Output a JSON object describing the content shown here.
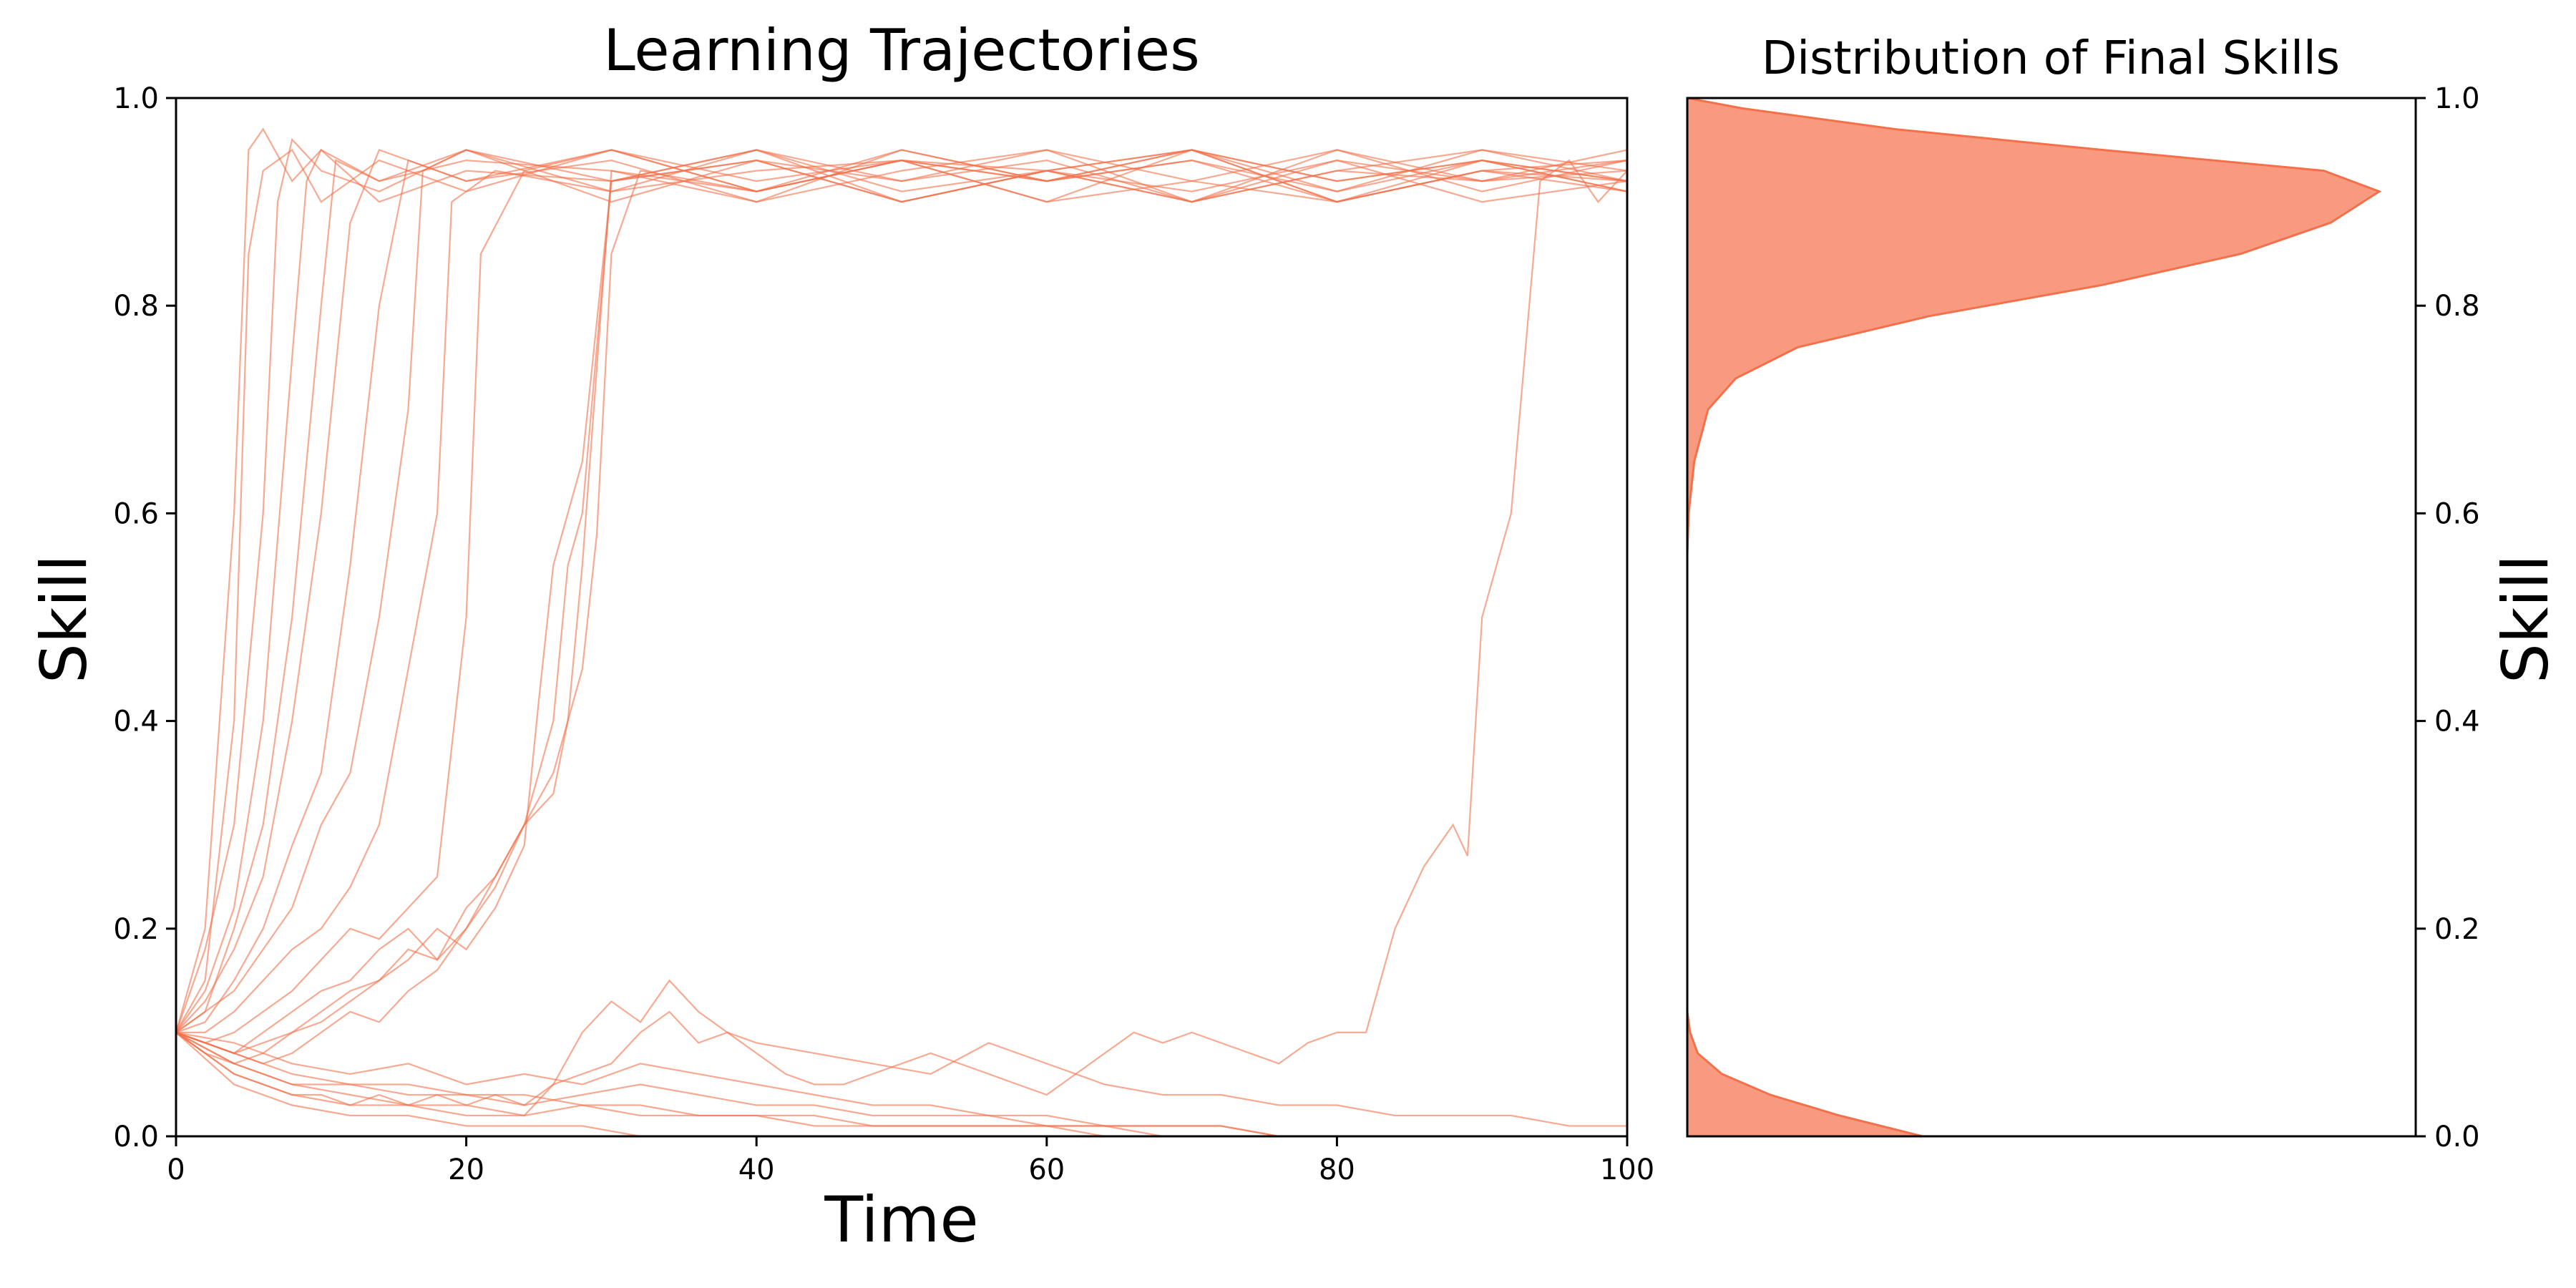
{
  "chart_data": [
    {
      "type": "line",
      "title": "Learning Trajectories",
      "xlabel": "Time",
      "ylabel": "Skill",
      "xlim": [
        0,
        100
      ],
      "ylim": [
        0,
        1
      ],
      "xticks": [
        0,
        20,
        40,
        60,
        80,
        100
      ],
      "yticks": [
        0,
        0.2,
        0.4,
        0.6,
        0.8,
        1.0
      ],
      "xtick_labels": [
        "0",
        "20",
        "40",
        "60",
        "80",
        "100"
      ],
      "ytick_labels": [
        "0.0",
        "0.2",
        "0.4",
        "0.6",
        "0.8",
        "1.0"
      ],
      "color": "#F4704A",
      "grid": false,
      "series": [
        {
          "x": [
            0,
            2,
            4,
            5,
            6,
            8,
            10,
            14,
            20,
            30,
            40,
            50,
            60,
            70,
            80,
            90,
            100
          ],
          "y": [
            0.1,
            0.2,
            0.6,
            0.95,
            0.97,
            0.92,
            0.95,
            0.9,
            0.93,
            0.92,
            0.95,
            0.9,
            0.93,
            0.91,
            0.94,
            0.9,
            0.92
          ]
        },
        {
          "x": [
            0,
            2,
            4,
            5,
            6,
            8,
            10,
            14,
            20,
            30,
            40,
            50,
            60,
            70,
            80,
            90,
            100
          ],
          "y": [
            0.1,
            0.15,
            0.4,
            0.85,
            0.93,
            0.95,
            0.9,
            0.94,
            0.91,
            0.95,
            0.92,
            0.94,
            0.9,
            0.95,
            0.92,
            0.94,
            0.91
          ]
        },
        {
          "x": [
            0,
            2,
            4,
            6,
            7,
            8,
            10,
            14,
            20,
            30,
            40,
            50,
            60,
            70,
            80,
            90,
            100
          ],
          "y": [
            0.1,
            0.18,
            0.3,
            0.6,
            0.9,
            0.96,
            0.93,
            0.91,
            0.95,
            0.9,
            0.94,
            0.92,
            0.95,
            0.9,
            0.93,
            0.92,
            0.94
          ]
        },
        {
          "x": [
            0,
            2,
            4,
            6,
            8,
            9,
            10,
            14,
            20,
            30,
            40,
            50,
            60,
            70,
            80,
            90,
            100
          ],
          "y": [
            0.1,
            0.14,
            0.22,
            0.4,
            0.75,
            0.92,
            0.95,
            0.92,
            0.94,
            0.93,
            0.9,
            0.95,
            0.92,
            0.94,
            0.91,
            0.95,
            0.93
          ]
        },
        {
          "x": [
            0,
            2,
            4,
            6,
            8,
            10,
            11,
            14,
            20,
            30,
            40,
            50,
            60,
            70,
            80,
            90,
            100
          ],
          "y": [
            0.1,
            0.12,
            0.2,
            0.3,
            0.5,
            0.8,
            0.94,
            0.92,
            0.95,
            0.91,
            0.93,
            0.94,
            0.9,
            0.92,
            0.95,
            0.91,
            0.94
          ]
        },
        {
          "x": [
            0,
            2,
            4,
            6,
            8,
            10,
            12,
            14,
            20,
            30,
            40,
            50,
            60,
            70,
            80,
            90,
            100
          ],
          "y": [
            0.1,
            0.13,
            0.18,
            0.25,
            0.4,
            0.6,
            0.88,
            0.95,
            0.92,
            0.94,
            0.9,
            0.93,
            0.95,
            0.92,
            0.9,
            0.94,
            0.92
          ]
        },
        {
          "x": [
            0,
            2,
            4,
            6,
            8,
            10,
            12,
            14,
            16,
            20,
            30,
            40,
            50,
            60,
            70,
            80,
            90,
            100
          ],
          "y": [
            0.1,
            0.11,
            0.15,
            0.2,
            0.28,
            0.35,
            0.55,
            0.8,
            0.94,
            0.92,
            0.95,
            0.91,
            0.94,
            0.93,
            0.9,
            0.95,
            0.92,
            0.93
          ]
        },
        {
          "x": [
            0,
            2,
            4,
            6,
            8,
            10,
            12,
            14,
            16,
            17,
            20,
            30,
            40,
            50,
            60,
            70,
            80,
            90,
            100
          ],
          "y": [
            0.1,
            0.12,
            0.14,
            0.18,
            0.22,
            0.3,
            0.35,
            0.5,
            0.7,
            0.93,
            0.95,
            0.92,
            0.94,
            0.9,
            0.93,
            0.95,
            0.91,
            0.94,
            0.92
          ]
        },
        {
          "x": [
            0,
            2,
            4,
            6,
            8,
            10,
            12,
            14,
            16,
            18,
            19,
            22,
            30,
            40,
            50,
            60,
            70,
            80,
            90,
            100
          ],
          "y": [
            0.1,
            0.1,
            0.12,
            0.15,
            0.18,
            0.2,
            0.24,
            0.3,
            0.45,
            0.6,
            0.9,
            0.93,
            0.91,
            0.95,
            0.92,
            0.94,
            0.9,
            0.93,
            0.95,
            0.92
          ]
        },
        {
          "x": [
            0,
            2,
            4,
            6,
            8,
            10,
            12,
            14,
            16,
            18,
            20,
            21,
            24,
            30,
            40,
            50,
            60,
            70,
            80,
            90,
            100
          ],
          "y": [
            0.1,
            0.09,
            0.1,
            0.12,
            0.14,
            0.17,
            0.2,
            0.19,
            0.22,
            0.25,
            0.5,
            0.85,
            0.93,
            0.95,
            0.91,
            0.94,
            0.92,
            0.95,
            0.9,
            0.93,
            0.91
          ]
        },
        {
          "x": [
            0,
            2,
            4,
            6,
            8,
            10,
            12,
            14,
            16,
            18,
            20,
            22,
            24,
            26,
            27,
            28,
            30,
            40,
            50,
            60,
            70,
            80,
            90,
            100
          ],
          "y": [
            0.1,
            0.09,
            0.08,
            0.1,
            0.12,
            0.14,
            0.15,
            0.18,
            0.2,
            0.17,
            0.22,
            0.25,
            0.3,
            0.4,
            0.55,
            0.6,
            0.92,
            0.94,
            0.9,
            0.93,
            0.95,
            0.92,
            0.94,
            0.91
          ]
        },
        {
          "x": [
            0,
            2,
            4,
            6,
            8,
            10,
            12,
            14,
            16,
            18,
            20,
            22,
            24,
            26,
            28,
            29,
            30,
            32,
            40,
            50,
            60,
            70,
            80,
            90,
            100
          ],
          "y": [
            0.1,
            0.09,
            0.08,
            0.09,
            0.1,
            0.12,
            0.14,
            0.15,
            0.18,
            0.17,
            0.2,
            0.24,
            0.3,
            0.35,
            0.45,
            0.58,
            0.85,
            0.93,
            0.91,
            0.94,
            0.92,
            0.95,
            0.9,
            0.93,
            0.94
          ]
        },
        {
          "x": [
            0,
            2,
            4,
            6,
            8,
            10,
            12,
            14,
            16,
            18,
            20,
            22,
            24,
            25,
            26,
            28,
            30,
            40,
            50,
            60,
            70,
            80,
            90,
            100
          ],
          "y": [
            0.1,
            0.08,
            0.07,
            0.08,
            0.1,
            0.11,
            0.13,
            0.15,
            0.17,
            0.2,
            0.18,
            0.22,
            0.28,
            0.42,
            0.55,
            0.65,
            0.92,
            0.95,
            0.91,
            0.93,
            0.9,
            0.94,
            0.92,
            0.95
          ]
        },
        {
          "x": [
            0,
            2,
            4,
            6,
            8,
            10,
            12,
            14,
            16,
            18,
            20,
            22,
            24,
            26,
            27,
            28,
            30,
            40,
            50,
            60,
            70,
            80,
            90,
            100
          ],
          "y": [
            0.1,
            0.09,
            0.08,
            0.07,
            0.08,
            0.1,
            0.12,
            0.11,
            0.14,
            0.16,
            0.2,
            0.25,
            0.3,
            0.33,
            0.4,
            0.55,
            0.93,
            0.91,
            0.95,
            0.92,
            0.94,
            0.9,
            0.93,
            0.92
          ]
        },
        {
          "x": [
            0,
            2,
            4,
            6,
            8,
            10,
            12,
            14,
            16,
            18,
            20,
            22,
            24,
            26,
            28,
            30,
            32,
            34,
            36,
            38,
            40,
            42,
            44,
            46,
            48,
            50,
            52,
            54,
            56,
            58,
            60,
            62,
            64,
            66,
            68,
            70,
            72,
            74,
            76,
            78,
            80,
            82,
            84,
            86,
            88,
            89,
            90,
            92,
            94,
            96,
            98,
            100
          ],
          "y": [
            0.1,
            0.08,
            0.06,
            0.05,
            0.04,
            0.04,
            0.03,
            0.04,
            0.03,
            0.04,
            0.03,
            0.04,
            0.03,
            0.05,
            0.06,
            0.07,
            0.1,
            0.12,
            0.09,
            0.1,
            0.08,
            0.06,
            0.05,
            0.05,
            0.06,
            0.07,
            0.08,
            0.07,
            0.06,
            0.05,
            0.04,
            0.06,
            0.08,
            0.1,
            0.09,
            0.1,
            0.09,
            0.08,
            0.07,
            0.09,
            0.1,
            0.1,
            0.2,
            0.26,
            0.3,
            0.27,
            0.5,
            0.6,
            0.92,
            0.94,
            0.9,
            0.93
          ]
        },
        {
          "x": [
            0,
            4,
            8,
            12,
            16,
            20,
            24,
            26,
            28,
            30,
            32,
            34,
            36,
            38,
            40,
            44,
            48,
            52,
            56,
            60,
            64,
            68,
            72,
            76,
            80,
            84,
            88,
            92,
            96,
            100
          ],
          "y": [
            0.1,
            0.07,
            0.05,
            0.04,
            0.03,
            0.03,
            0.02,
            0.05,
            0.1,
            0.13,
            0.11,
            0.15,
            0.12,
            0.1,
            0.09,
            0.08,
            0.07,
            0.06,
            0.09,
            0.07,
            0.05,
            0.04,
            0.04,
            0.03,
            0.03,
            0.02,
            0.02,
            0.02,
            0.01,
            0.01
          ]
        },
        {
          "x": [
            0,
            4,
            8,
            12,
            16,
            20,
            24,
            28,
            32,
            36,
            40,
            44,
            48,
            52,
            56,
            60,
            64,
            68,
            72,
            76,
            80,
            84,
            88,
            92,
            96,
            100
          ],
          "y": [
            0.1,
            0.06,
            0.04,
            0.03,
            0.03,
            0.02,
            0.02,
            0.03,
            0.02,
            0.02,
            0.02,
            0.01,
            0.01,
            0.01,
            0.01,
            0.01,
            0.01,
            0.0,
            0.0,
            0.0,
            0.0,
            0.0,
            0.0,
            0.0,
            0.0,
            0.0
          ]
        },
        {
          "x": [
            0,
            4,
            8,
            12,
            16,
            20,
            24,
            28,
            32,
            36,
            40,
            44,
            48,
            52,
            56,
            60,
            64,
            68,
            72,
            76,
            80,
            84,
            88,
            92,
            96,
            100
          ],
          "y": [
            0.1,
            0.07,
            0.05,
            0.05,
            0.04,
            0.04,
            0.03,
            0.04,
            0.05,
            0.04,
            0.03,
            0.03,
            0.02,
            0.02,
            0.02,
            0.01,
            0.01,
            0.01,
            0.01,
            0.0,
            0.0,
            0.0,
            0.0,
            0.0,
            0.0,
            0.0
          ]
        },
        {
          "x": [
            0,
            4,
            8,
            12,
            16,
            20,
            24,
            28,
            32,
            36,
            40,
            44,
            48,
            52,
            56,
            60,
            64,
            68,
            72,
            76,
            80,
            84,
            88,
            92,
            96,
            100
          ],
          "y": [
            0.1,
            0.05,
            0.03,
            0.02,
            0.02,
            0.01,
            0.01,
            0.01,
            0.0,
            0.0,
            0.0,
            0.0,
            0.0,
            0.0,
            0.0,
            0.0,
            0.0,
            0.0,
            0.0,
            0.0,
            0.0,
            0.0,
            0.0,
            0.0,
            0.0,
            0.0
          ]
        },
        {
          "x": [
            0,
            4,
            8,
            12,
            16,
            20,
            24,
            28,
            32,
            36,
            40,
            44,
            48,
            52,
            56,
            60,
            64,
            68,
            72,
            76,
            80,
            84,
            88,
            92,
            96,
            100
          ],
          "y": [
            0.1,
            0.08,
            0.06,
            0.05,
            0.05,
            0.04,
            0.04,
            0.03,
            0.03,
            0.02,
            0.02,
            0.02,
            0.01,
            0.01,
            0.01,
            0.01,
            0.0,
            0.0,
            0.0,
            0.0,
            0.0,
            0.0,
            0.0,
            0.0,
            0.0,
            0.0
          ]
        },
        {
          "x": [
            0,
            4,
            8,
            12,
            16,
            20,
            24,
            28,
            32,
            36,
            40,
            44,
            48,
            52,
            56,
            60,
            64,
            68,
            72,
            76,
            80,
            84,
            88,
            92,
            96,
            100
          ],
          "y": [
            0.1,
            0.09,
            0.07,
            0.06,
            0.07,
            0.05,
            0.06,
            0.05,
            0.07,
            0.06,
            0.05,
            0.04,
            0.03,
            0.03,
            0.02,
            0.02,
            0.01,
            0.01,
            0.01,
            0.0,
            0.0,
            0.0,
            0.0,
            0.0,
            0.0,
            0.0
          ]
        }
      ]
    },
    {
      "type": "area",
      "title": "Distribution of Final Skills",
      "ylabel": "Skill",
      "ylim": [
        0,
        1
      ],
      "yticks": [
        0,
        0.2,
        0.4,
        0.6,
        0.8,
        1.0
      ],
      "ytick_labels": [
        "0.0",
        "0.2",
        "0.4",
        "0.6",
        "0.8",
        "1.0"
      ],
      "orientation": "horizontal",
      "color": "#F4704A",
      "fill_color": "#F89A80",
      "y": [
        0.0,
        0.02,
        0.04,
        0.06,
        0.08,
        0.1,
        0.12,
        0.2,
        0.4,
        0.56,
        0.6,
        0.65,
        0.7,
        0.73,
        0.76,
        0.79,
        0.82,
        0.85,
        0.88,
        0.91,
        0.93,
        0.95,
        0.97,
        0.99,
        1.0
      ],
      "density": [
        0.34,
        0.22,
        0.12,
        0.05,
        0.015,
        0.004,
        0.0,
        0.0,
        0.0,
        0.0,
        0.002,
        0.01,
        0.03,
        0.07,
        0.16,
        0.35,
        0.6,
        0.8,
        0.93,
        1.0,
        0.92,
        0.6,
        0.3,
        0.08,
        0.0
      ]
    }
  ]
}
